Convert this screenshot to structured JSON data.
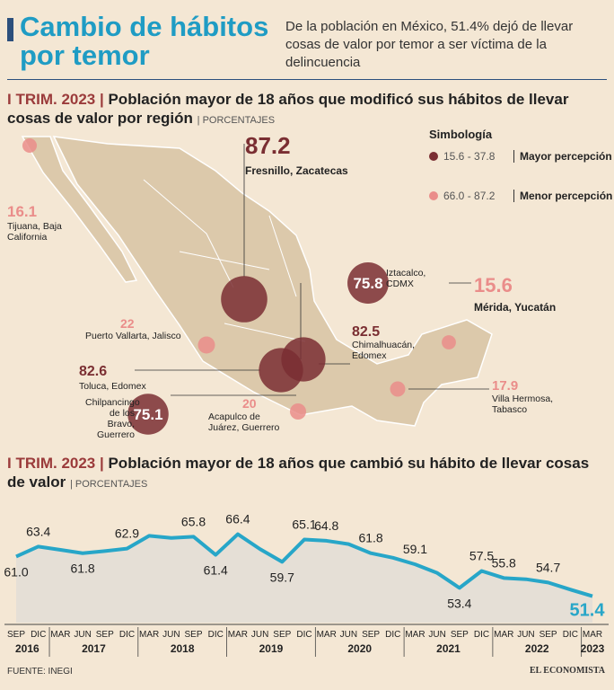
{
  "header": {
    "title": "Cambio de hábitos por temor",
    "subtitle": "De la población en México, 51.4% dejó de llevar cosas de valor por temor a ser víctima de la delincuencia"
  },
  "chart_data": [
    {
      "type": "bubble_map",
      "period": "I TRIM. 2023",
      "title": "Población mayor de 18 años que modificó sus hábitos de llevar cosas de valor por región",
      "unit": "PORCENTAJES",
      "legend": {
        "title": "Simbología",
        "items": [
          {
            "range": "15.6 - 37.8",
            "label": "Mayor percepción",
            "color": "#7a2e32"
          },
          {
            "range": "66.0 - 87.2",
            "label": "Menor percepción",
            "color": "#ea8d8a"
          }
        ]
      },
      "points": [
        {
          "name": "Tijuana, Baja California",
          "value": 16.1,
          "color": "#ea8d8a"
        },
        {
          "name": "Fresnillo, Zacatecas",
          "value": 87.2,
          "color": "#7a2e32"
        },
        {
          "name": "Iztacalco, CDMX",
          "value": 75.8,
          "color": "#7a2e32"
        },
        {
          "name": "Mérida, Yucatán",
          "value": 15.6,
          "color": "#ea8d8a"
        },
        {
          "name": "Puerto Vallarta, Jalisco",
          "value": 22,
          "color": "#ea8d8a"
        },
        {
          "name": "Chimalhuacán, Edomex",
          "value": 82.5,
          "color": "#7a2e32"
        },
        {
          "name": "Toluca, Edomex",
          "value": 82.6,
          "color": "#7a2e32"
        },
        {
          "name": "Chilpancingo de los Bravo, Guerrero",
          "value": 75.1,
          "color": "#7a2e32"
        },
        {
          "name": "Acapulco de Juárez, Guerrero",
          "value": 20,
          "color": "#ea8d8a"
        },
        {
          "name": "Villa Hermosa, Tabasco",
          "value": 17.9,
          "color": "#ea8d8a"
        }
      ]
    },
    {
      "type": "line",
      "period": "I TRIM. 2023",
      "title": "Población mayor de 18 años que cambió su hábito de llevar cosas de valor",
      "unit": "PORCENTAJES",
      "years": [
        {
          "label": "2016",
          "months": [
            "SEP",
            "DIC"
          ]
        },
        {
          "label": "2017",
          "months": [
            "MAR",
            "JUN",
            "SEP",
            "DIC"
          ]
        },
        {
          "label": "2018",
          "months": [
            "MAR",
            "JUN",
            "SEP",
            "DIC"
          ]
        },
        {
          "label": "2019",
          "months": [
            "MAR",
            "JUN",
            "SEP",
            "DIC"
          ]
        },
        {
          "label": "2020",
          "months": [
            "MAR",
            "JUN",
            "SEP",
            "DIC"
          ]
        },
        {
          "label": "2021",
          "months": [
            "MAR",
            "JUN",
            "SEP",
            "DIC"
          ]
        },
        {
          "label": "2022",
          "months": [
            "MAR",
            "JUN",
            "SEP",
            "DIC"
          ]
        },
        {
          "label": "2023",
          "months": [
            "MAR"
          ]
        }
      ],
      "series": [
        {
          "color": "#27a6c8",
          "values": [
            61.0,
            63.4,
            62.6,
            61.8,
            62.3,
            62.9,
            66.0,
            65.5,
            65.8,
            61.4,
            66.4,
            62.8,
            59.7,
            65.1,
            64.8,
            64.0,
            61.8,
            60.7,
            59.1,
            57.0,
            53.4,
            57.5,
            55.8,
            55.5,
            54.7,
            53.0,
            51.4
          ],
          "value_labels": [
            "61.0",
            "63.4",
            null,
            "61.8",
            null,
            "62.9",
            null,
            null,
            "65.8",
            "61.4",
            "66.4",
            null,
            "59.7",
            "65.1",
            "64.8",
            null,
            "61.8",
            null,
            "59.1",
            null,
            "53.4",
            "57.5",
            "55.8",
            null,
            "54.7",
            null,
            "51.4"
          ]
        }
      ],
      "ylim": [
        45,
        70
      ],
      "fill": "#e5dfd6"
    }
  ],
  "footer": {
    "source": "FUENTE: INEGI",
    "brand": "EL ECONOMISTA"
  }
}
